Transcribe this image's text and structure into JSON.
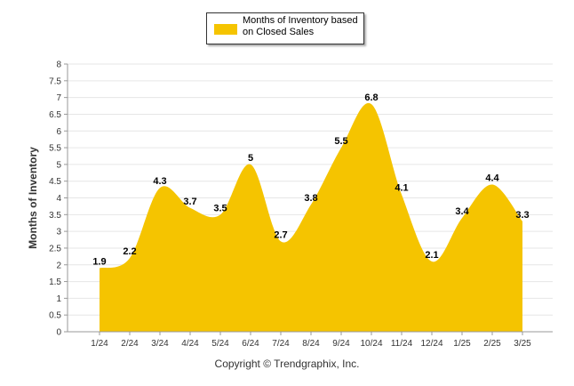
{
  "chart_data": {
    "type": "area",
    "categories": [
      "1/24",
      "2/24",
      "3/24",
      "4/24",
      "5/24",
      "6/24",
      "7/24",
      "8/24",
      "9/24",
      "10/24",
      "11/24",
      "12/24",
      "1/25",
      "2/25",
      "3/25"
    ],
    "series": [
      {
        "name": "Months of Inventory based on Closed Sales",
        "values": [
          1.9,
          2.2,
          4.3,
          3.7,
          3.5,
          5,
          2.7,
          3.8,
          5.5,
          6.8,
          4.1,
          2.1,
          3.4,
          4.4,
          3.3
        ],
        "color": "#F5C400"
      }
    ],
    "ylabel": "Months of Inventory",
    "xlabel": "",
    "ylim": [
      0,
      8
    ],
    "yticks": [
      "0",
      "0.5",
      "1",
      "1.5",
      "2",
      "2.5",
      "3",
      "3.5",
      "4",
      "4.5",
      "5",
      "5.5",
      "6",
      "6.5",
      "7",
      "7.5",
      "8"
    ],
    "data_labels": [
      "1.9",
      "2.2",
      "4.3",
      "3.7",
      "3.5",
      "5",
      "2.7",
      "3.8",
      "5.5",
      "6.8",
      "4.1",
      "2.1",
      "3.4",
      "4.4",
      "3.3"
    ],
    "grid": true,
    "legend": "top-center"
  },
  "legend": {
    "label": "Months of Inventory based on Closed Sales",
    "color": "#F5C400"
  },
  "footer": {
    "copyright": "Copyright © Trendgraphix, Inc."
  }
}
